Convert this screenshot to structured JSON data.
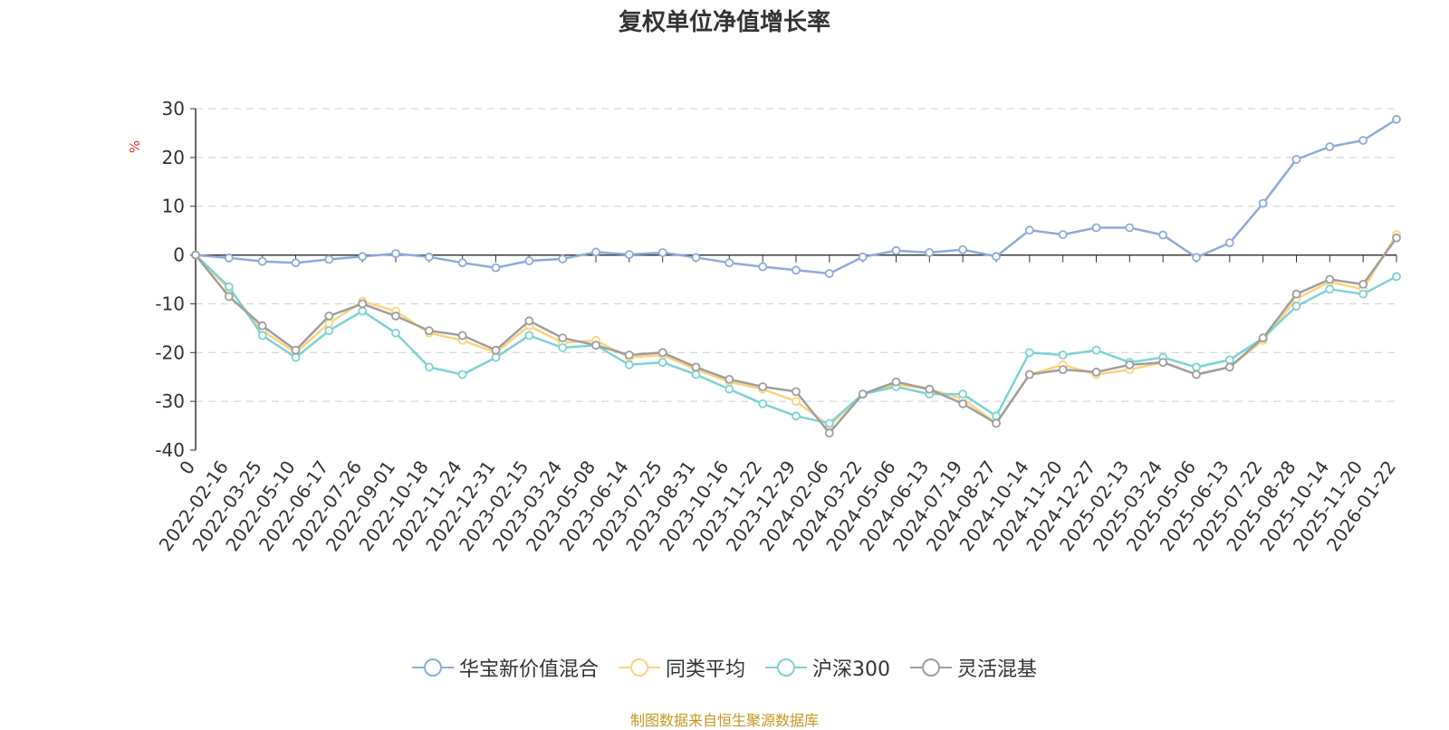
{
  "chart_data": {
    "type": "line",
    "title": "复权单位净值增长率",
    "ylabel": "%",
    "xlabel": "",
    "ylim": [
      -40,
      30
    ],
    "yticks": [
      30,
      20,
      10,
      0,
      -10,
      -20,
      -30,
      -40
    ],
    "grid": true,
    "legend_position": "bottom-center",
    "x_labels": [
      "0",
      "2022-02-16",
      "2022-03-25",
      "2022-05-10",
      "2022-06-17",
      "2022-07-26",
      "2022-09-01",
      "2022-10-18",
      "2022-11-24",
      "2022-12-31",
      "2023-02-15",
      "2023-03-24",
      "2023-05-08",
      "2023-06-14",
      "2023-07-25",
      "2023-08-31",
      "2023-10-16",
      "2023-11-22",
      "2023-12-29",
      "2024-02-06",
      "2024-03-22",
      "2024-05-06",
      "2024-06-13",
      "2024-07-19",
      "2024-08-27",
      "2024-10-14",
      "2024-11-20",
      "2024-12-27",
      "2025-02-13",
      "2025-03-24",
      "2025-05-06",
      "2025-06-13",
      "2025-07-22",
      "2025-08-28",
      "2025-10-14",
      "2025-11-20",
      "2026-01-22"
    ],
    "series": [
      {
        "name": "华宝新价值混合",
        "color": "#8eaadb",
        "values": [
          0,
          -0.6,
          -1.3,
          -1.6,
          -0.9,
          -0.3,
          0.3,
          -0.4,
          -1.6,
          -2.6,
          -1.2,
          -0.8,
          0.6,
          0.1,
          0.5,
          -0.5,
          -1.6,
          -2.4,
          -3.1,
          -3.8,
          -0.4,
          0.9,
          0.5,
          1.1,
          -0.3,
          5.1,
          4.2,
          5.6,
          5.6,
          4.1,
          -0.5,
          2.5,
          10.6,
          19.6,
          22.2,
          23.5,
          27.8
        ]
      },
      {
        "name": "同类平均",
        "color": "#fbd47c",
        "values": [
          0,
          -7.0,
          -15.5,
          -20.0,
          -14.0,
          -9.5,
          -11.5,
          -16.0,
          -17.5,
          -20.0,
          -14.5,
          -18.0,
          -17.5,
          -21.0,
          -20.5,
          -23.5,
          -26.0,
          -27.5,
          -30.0,
          -35.0,
          -28.5,
          -26.5,
          -27.5,
          -29.5,
          -34.5,
          -24.5,
          -22.5,
          -24.5,
          -23.5,
          -22.0,
          -24.5,
          -23.0,
          -17.5,
          -9.0,
          -5.5,
          -7.0,
          4.2
        ]
      },
      {
        "name": "沪深300",
        "color": "#7dd3d3",
        "values": [
          0,
          -6.5,
          -16.5,
          -21.0,
          -15.5,
          -11.5,
          -16.0,
          -23.0,
          -24.5,
          -21.0,
          -16.5,
          -19.0,
          -18.5,
          -22.5,
          -22.0,
          -24.5,
          -27.5,
          -30.5,
          -33.0,
          -34.5,
          -28.5,
          -27.0,
          -28.5,
          -28.5,
          -33.0,
          -20.0,
          -20.5,
          -19.5,
          -22.0,
          -21.0,
          -23.0,
          -21.5,
          -17.0,
          -10.5,
          -7.0,
          -8.0,
          -4.4
        ]
      },
      {
        "name": "灵活混基",
        "color": "#9e9e9e",
        "values": [
          0,
          -8.5,
          -14.5,
          -19.5,
          -12.5,
          -10.0,
          -12.5,
          -15.5,
          -16.5,
          -19.5,
          -13.5,
          -17.0,
          -18.5,
          -20.5,
          -20.0,
          -23.0,
          -25.5,
          -27.0,
          -28.0,
          -36.5,
          -28.5,
          -26.0,
          -27.5,
          -30.5,
          -34.5,
          -24.5,
          -23.5,
          -24.0,
          -22.5,
          -22.0,
          -24.5,
          -23.0,
          -17.0,
          -8.0,
          -5.0,
          -6.0,
          3.5
        ]
      }
    ]
  },
  "footer": {
    "source": "制图数据来自恒生聚源数据库"
  }
}
